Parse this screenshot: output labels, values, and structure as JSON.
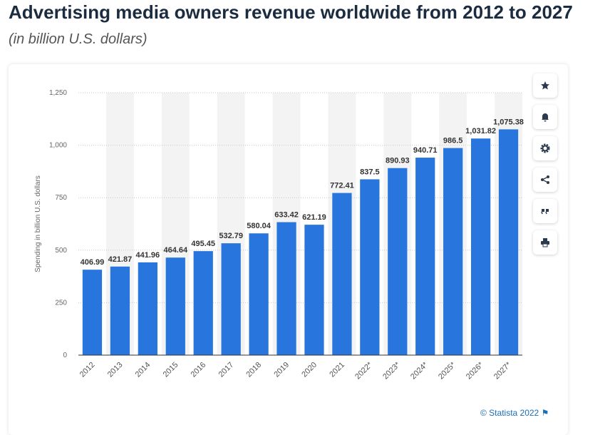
{
  "chart_data": {
    "type": "bar",
    "title": "Advertising media owners revenue worldwide from 2012 to 2027",
    "subtitle": "(in billion U.S. dollars)",
    "y_label": "Spending in billion U.S. dollars",
    "source": "© Statista 2022",
    "categories": [
      "2012",
      "2013",
      "2014",
      "2015",
      "2016",
      "2017",
      "2018",
      "2019",
      "2020",
      "2021",
      "2022*",
      "2023*",
      "2024*",
      "2025*",
      "2026*",
      "2027*"
    ],
    "values": [
      406.99,
      421.87,
      441.96,
      464.64,
      495.45,
      532.79,
      580.04,
      633.42,
      621.19,
      772.41,
      837.5,
      890.93,
      940.71,
      986.5,
      1031.82,
      1075.38
    ],
    "value_labels": [
      "406.99",
      "421.87",
      "441.96",
      "464.64",
      "495.45",
      "532.79",
      "580.04",
      "633.42",
      "621.19",
      "772.41",
      "837.5",
      "890.93",
      "940.71",
      "986.5",
      "1,031.82",
      "1,075.38"
    ],
    "color": "#2876dd",
    "ylim": [
      0,
      1250
    ],
    "yticks": [
      0,
      250,
      500,
      750,
      {
        "value": 1000,
        "label": "1,000"
      },
      {
        "value": 1250,
        "label": "1,250"
      }
    ],
    "grid": true
  }
}
